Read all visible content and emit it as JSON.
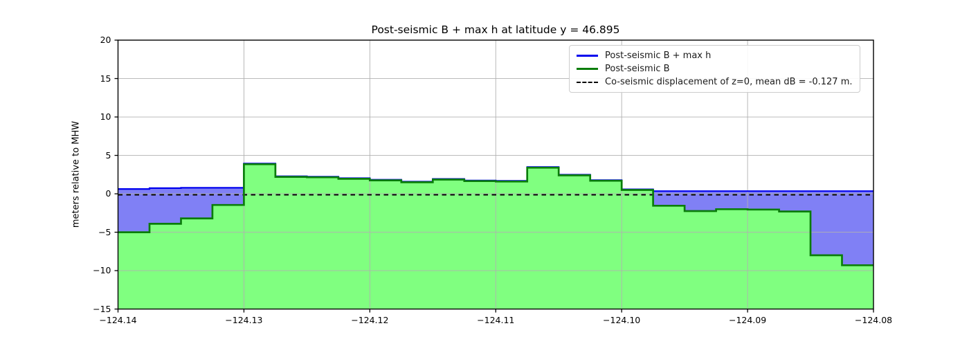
{
  "chart_data": {
    "type": "area",
    "title": "Post-seismic B + max h at latitude y = 46.895",
    "xlabel": "",
    "ylabel": "meters relative to MHW",
    "xlim": [
      -124.14,
      -124.08
    ],
    "ylim": [
      -15,
      20
    ],
    "grid": true,
    "legend_position": "upper right",
    "x_start": -124.14,
    "step": 0.0025,
    "x_ticks": [
      -124.14,
      -124.13,
      -124.12,
      -124.11,
      -124.1,
      -124.09,
      -124.08
    ],
    "x_tick_labels": [
      "−124.14",
      "−124.13",
      "−124.12",
      "−124.11",
      "−124.10",
      "−124.09",
      "−124.08"
    ],
    "y_ticks": [
      -15,
      -10,
      -5,
      0,
      5,
      10,
      15,
      20
    ],
    "y_tick_labels": [
      "−15",
      "−10",
      "−5",
      "0",
      "5",
      "10",
      "15",
      "20"
    ],
    "series": [
      {
        "name": "Post-seismic B + max h",
        "style": "solid-step",
        "line_color": "#0000ee",
        "fill_color": "#8080f5",
        "values": [
          0.55,
          0.65,
          0.7,
          0.7,
          3.85,
          2.2,
          2.15,
          1.95,
          1.75,
          1.5,
          1.85,
          1.65,
          1.6,
          3.4,
          2.4,
          1.7,
          0.5,
          0.27,
          0.27,
          0.27,
          0.27,
          0.27,
          0.27,
          0.27
        ]
      },
      {
        "name": "Post-seismic B",
        "style": "solid-step",
        "line_color": "#0a7d0a",
        "fill_color": "#80ff80",
        "values": [
          -5.0,
          -3.9,
          -3.2,
          -1.45,
          3.85,
          2.2,
          2.15,
          1.95,
          1.75,
          1.5,
          1.85,
          1.65,
          1.6,
          3.4,
          2.4,
          1.7,
          0.5,
          -1.55,
          -2.25,
          -2.0,
          -2.05,
          -2.3,
          -8.0,
          -9.3
        ]
      },
      {
        "name": "Co-seismic displacement of z=0, mean dB = -0.127 m.",
        "style": "dashed-horizontal",
        "line_color": "#000000",
        "value": -0.127
      }
    ],
    "grid_color": "#b0b0b0",
    "frame_color": "#000000"
  },
  "legend": {
    "items": [
      {
        "label": "Post-seismic B + max h",
        "swatch": "solid",
        "color": "#0000ee"
      },
      {
        "label": "Post-seismic B",
        "swatch": "solid",
        "color": "#0a7d0a"
      },
      {
        "label": "Co-seismic displacement of z=0, mean dB = -0.127 m.",
        "swatch": "dashed",
        "color": "#000000"
      }
    ]
  }
}
